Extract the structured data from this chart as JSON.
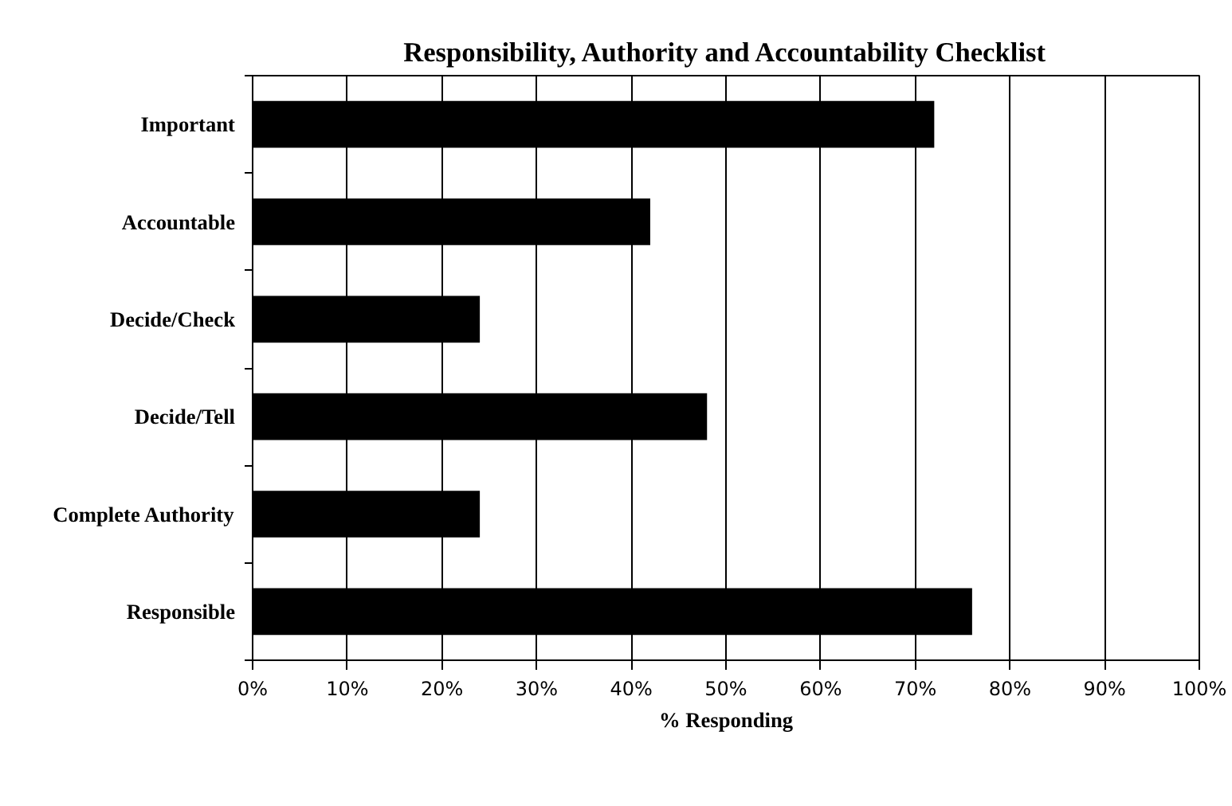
{
  "chart_data": {
    "type": "bar",
    "orientation": "horizontal",
    "title": "Responsibility, Authority and Accountability Checklist",
    "xlabel": "% Responding",
    "categories": [
      "Important",
      "Accountable",
      "Decide/Check",
      "Decide/Tell",
      "Complete Authority",
      "Responsible"
    ],
    "values": [
      72,
      42,
      24,
      48,
      24,
      76
    ],
    "color": "#000000",
    "xlim": [
      0,
      100
    ],
    "xticks": [
      {
        "value": 0,
        "label": "0%"
      },
      {
        "value": 10,
        "label": "10%"
      },
      {
        "value": 20,
        "label": "20%"
      },
      {
        "value": 30,
        "label": "30%"
      },
      {
        "value": 40,
        "label": "40%"
      },
      {
        "value": 50,
        "label": "50%"
      },
      {
        "value": 60,
        "label": "60%"
      },
      {
        "value": 70,
        "label": "70%"
      },
      {
        "value": 80,
        "label": "80%"
      },
      {
        "value": 90,
        "label": "90%"
      },
      {
        "value": 100,
        "label": "100%"
      }
    ],
    "grid": "x"
  }
}
